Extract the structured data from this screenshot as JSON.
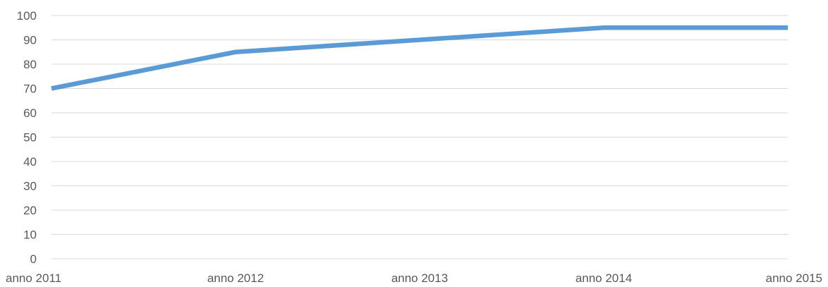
{
  "chart_data": {
    "type": "line",
    "title": "",
    "xlabel": "",
    "ylabel": "",
    "categories": [
      "anno 2011",
      "anno 2012",
      "anno 2013",
      "anno 2014",
      "anno 2015"
    ],
    "series": [
      {
        "values": [
          70,
          85,
          90,
          95,
          95
        ],
        "color": "#5b9bd5"
      }
    ],
    "ylim": [
      0,
      100
    ],
    "yticks": [
      "0",
      "10",
      "20",
      "30",
      "40",
      "50",
      "60",
      "70",
      "80",
      "90",
      "100"
    ],
    "grid": "horizontal",
    "legend": "none",
    "colors": {
      "gridline": "#d9d9d9",
      "tick_text": "#595959",
      "background": "#ffffff"
    }
  }
}
